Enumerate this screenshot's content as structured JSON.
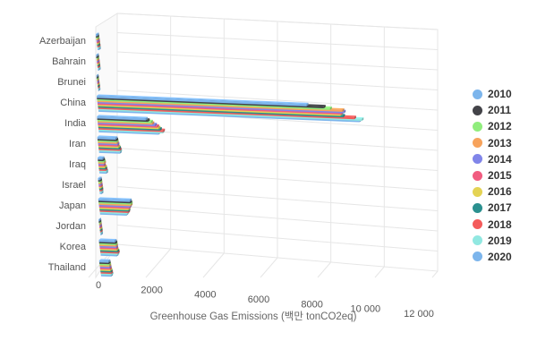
{
  "chart_data": {
    "type": "bar",
    "orientation": "horizontal",
    "three_d": true,
    "grid": true,
    "legend_position": "right",
    "title": "",
    "xlabel": "Greenhouse Gas Emissions (백만 tonCO2eq)",
    "ylabel": "",
    "xlim": [
      0,
      12000
    ],
    "x_ticks": [
      "0",
      "2000",
      "4000",
      "6000",
      "8000",
      "10 000",
      "12 000"
    ],
    "x_tick_values": [
      0,
      2000,
      4000,
      6000,
      8000,
      10000,
      12000
    ],
    "categories": [
      "Azerbaijan",
      "Bahrain",
      "Brunei",
      "China",
      "India",
      "Iran",
      "Iraq",
      "Israel",
      "Japan",
      "Jordan",
      "Korea",
      "Thailand"
    ],
    "series": [
      {
        "name": "2010",
        "color": "#7cb5ec",
        "values": [
          55,
          35,
          15,
          8600,
          2000,
          750,
          200,
          80,
          1290,
          30,
          650,
          380
        ]
      },
      {
        "name": "2011",
        "color": "#434348",
        "values": [
          55,
          36,
          15,
          9300,
          2080,
          770,
          215,
          82,
          1300,
          30,
          670,
          385
        ]
      },
      {
        "name": "2012",
        "color": "#90ed7d",
        "values": [
          57,
          37,
          16,
          9550,
          2200,
          780,
          235,
          85,
          1320,
          30,
          675,
          390
        ]
      },
      {
        "name": "2013",
        "color": "#f7a35c",
        "values": [
          57,
          38,
          16,
          10050,
          2250,
          780,
          245,
          82,
          1310,
          31,
          680,
          395
        ]
      },
      {
        "name": "2014",
        "color": "#8085e9",
        "values": [
          58,
          38,
          16,
          10100,
          2350,
          800,
          215,
          80,
          1270,
          32,
          680,
          395
        ]
      },
      {
        "name": "2015",
        "color": "#f15c80",
        "values": [
          60,
          39,
          16,
          10000,
          2430,
          790,
          225,
          85,
          1230,
          33,
          680,
          400
        ]
      },
      {
        "name": "2016",
        "color": "#e4d354",
        "values": [
          58,
          38,
          16,
          9950,
          2480,
          820,
          255,
          83,
          1200,
          33,
          690,
          410
        ]
      },
      {
        "name": "2017",
        "color": "#2b908f",
        "values": [
          58,
          39,
          17,
          10050,
          2530,
          840,
          260,
          85,
          1190,
          33,
          710,
          420
        ]
      },
      {
        "name": "2018",
        "color": "#f45b5b",
        "values": [
          60,
          40,
          17,
          10500,
          2650,
          860,
          270,
          84,
          1170,
          34,
          720,
          430
        ]
      },
      {
        "name": "2019",
        "color": "#91e8e1",
        "values": [
          62,
          40,
          17,
          10800,
          2620,
          870,
          290,
          82,
          1130,
          34,
          700,
          440
        ]
      },
      {
        "name": "2020",
        "color": "#7cb5ec",
        "values": [
          60,
          40,
          17,
          10700,
          2450,
          850,
          280,
          75,
          1080,
          32,
          660,
          410
        ]
      }
    ]
  }
}
